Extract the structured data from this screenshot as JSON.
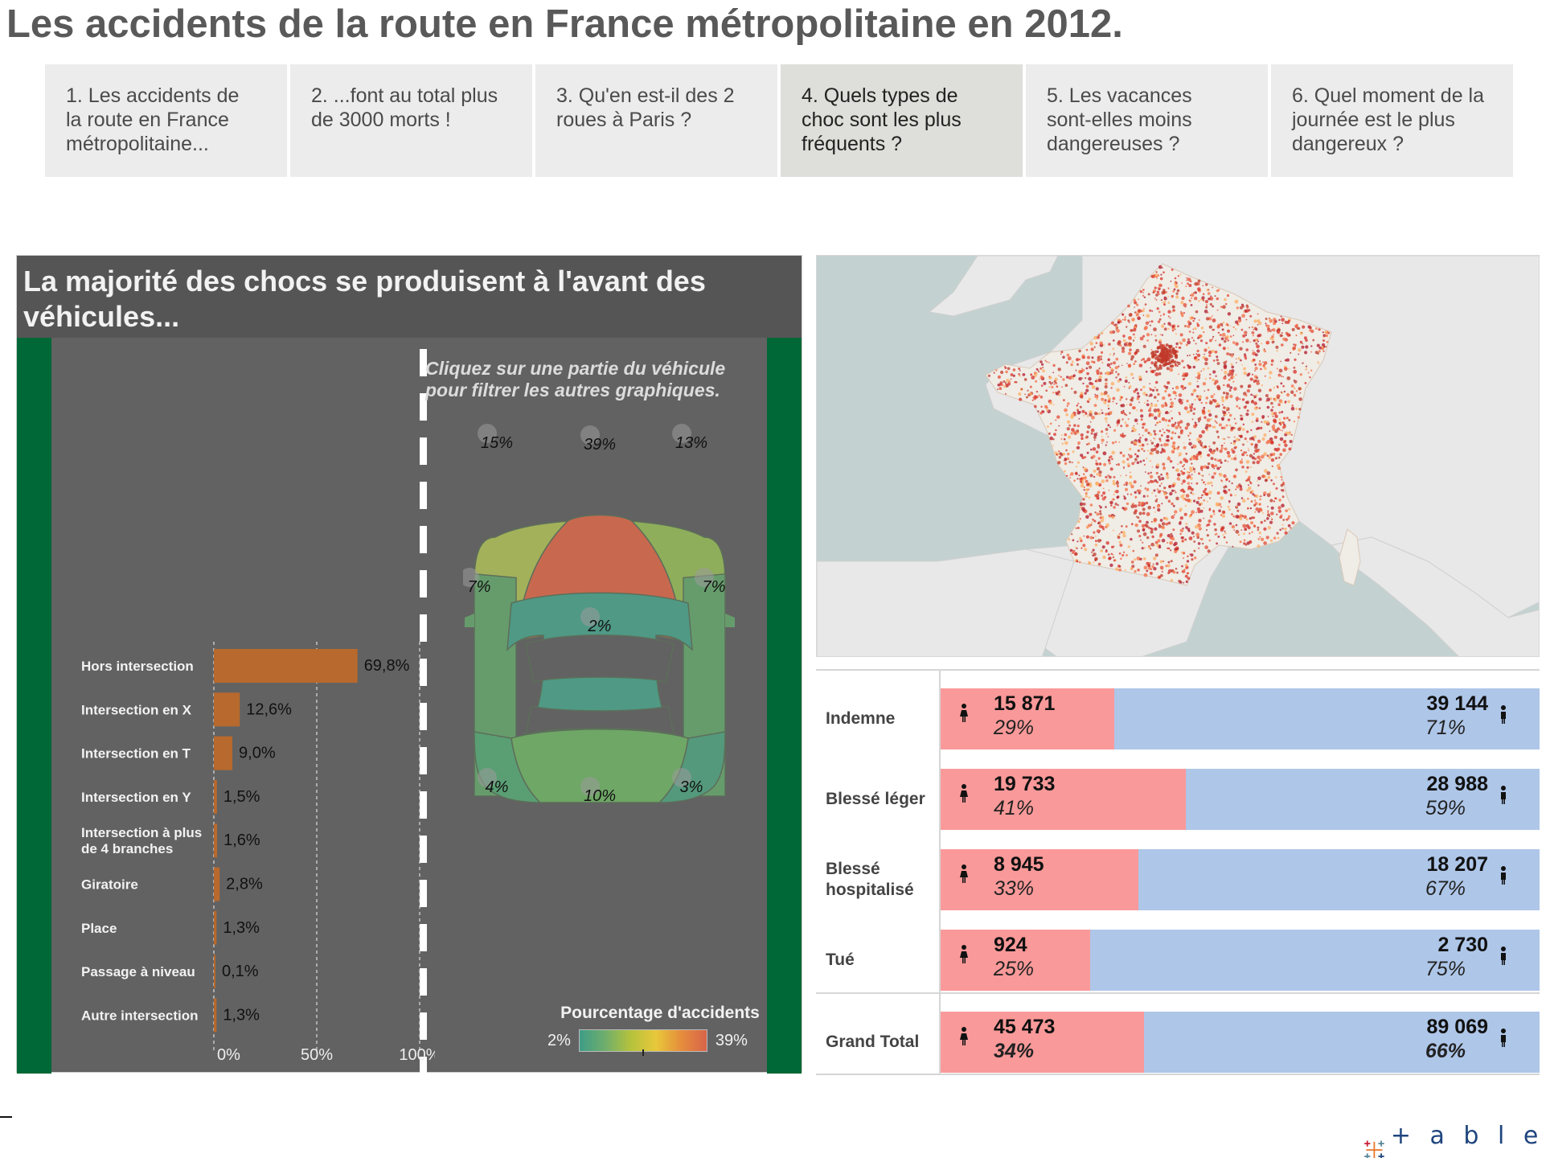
{
  "title": "Les accidents de la route en France métropolitaine en 2012.",
  "story_points": [
    {
      "line1": "1. Les accidents de",
      "line2": "la route en France",
      "line3": "métropolitaine..."
    },
    {
      "line1": "2. ...font au total plus",
      "line2": "de 3000 morts !",
      "line3": ""
    },
    {
      "line1": "3. Qu'en est-il des 2",
      "line2": "roues à Paris ?",
      "line3": ""
    },
    {
      "line1": "4. Quels types de",
      "line2": "choc sont les plus",
      "line3": "fréquents ?"
    },
    {
      "line1": "5. Les vacances",
      "line2": "sont-elles moins",
      "line3": "dangereuses ?"
    },
    {
      "line1": "6. Quel moment de la",
      "line2": "journée est le plus",
      "line3": "dangereux ?"
    }
  ],
  "active_story_index": 3,
  "left_panel": {
    "title_line1": "La majorité des chocs se produisent à l'avant des",
    "title_line2": "véhicules...",
    "instruction_line1": "Cliquez sur une partie du véhicule",
    "instruction_line2": "pour filtrer les autres graphiques."
  },
  "chart_data": {
    "type": "bar",
    "orientation": "horizontal",
    "categories": [
      [
        "Hors intersection"
      ],
      [
        "Intersection en X"
      ],
      [
        "Intersection en T"
      ],
      [
        "Intersection en Y"
      ],
      [
        "Intersection à plus",
        "de 4 branches"
      ],
      [
        "Giratoire"
      ],
      [
        "Place"
      ],
      [
        "Passage à niveau"
      ],
      [
        "Autre intersection"
      ]
    ],
    "values": [
      69.8,
      12.6,
      9.0,
      1.5,
      1.6,
      2.8,
      1.3,
      0.1,
      1.3
    ],
    "value_labels": [
      "69,8%",
      "12,6%",
      "9,0%",
      "1,5%",
      "1,6%",
      "2,8%",
      "1,3%",
      "0,1%",
      "1,3%"
    ],
    "xlim": [
      0,
      100
    ],
    "x_ticks": [
      0,
      50,
      100
    ],
    "x_tick_labels": [
      "0%",
      "50%",
      "100%"
    ],
    "color": "#b8692d"
  },
  "car_zones": [
    {
      "id": "front-center",
      "label": "39%",
      "color": "#c8694f"
    },
    {
      "id": "front-left",
      "label": "15%",
      "color": "#a3b15b"
    },
    {
      "id": "front-right",
      "label": "13%",
      "color": "#8fae5b"
    },
    {
      "id": "side-left",
      "label": "7%",
      "color": "#669c6c"
    },
    {
      "id": "side-right",
      "label": "7%",
      "color": "#669c6c"
    },
    {
      "id": "center",
      "label": "2%",
      "color": "#4f9985"
    },
    {
      "id": "rear-left",
      "label": "4%",
      "color": "#5a9e74"
    },
    {
      "id": "rear-center",
      "label": "10%",
      "color": "#6fa766"
    },
    {
      "id": "rear-right",
      "label": "3%",
      "color": "#54997c"
    }
  ],
  "legend": {
    "title": "Pourcentage d'accidents",
    "min_label": "2%",
    "max_label": "39%"
  },
  "gender_table": {
    "rows": [
      {
        "label1": "Indemne",
        "label2": "",
        "female_count": "15 871",
        "female_pct": "29%",
        "female_share": 0.29,
        "male_count": "39 144",
        "male_pct": "71%"
      },
      {
        "label1": "Blessé léger",
        "label2": "",
        "female_count": "19 733",
        "female_pct": "41%",
        "female_share": 0.41,
        "male_count": "28 988",
        "male_pct": "59%"
      },
      {
        "label1": "Blessé",
        "label2": "hospitalisé",
        "female_count": "8 945",
        "female_pct": "33%",
        "female_share": 0.33,
        "male_count": "18 207",
        "male_pct": "67%"
      },
      {
        "label1": "Tué",
        "label2": "",
        "female_count": "924",
        "female_pct": "25%",
        "female_share": 0.25,
        "male_count": "2 730",
        "male_pct": "75%"
      },
      {
        "label1": "Grand Total",
        "label2": "",
        "female_count": "45 473",
        "female_pct": "34%",
        "female_share": 0.34,
        "male_count": "89 069",
        "male_pct": "66%"
      }
    ],
    "female_color": "#fa9999",
    "male_color": "#aec6e8"
  },
  "brand": {
    "name": "+ a b l e a u"
  }
}
